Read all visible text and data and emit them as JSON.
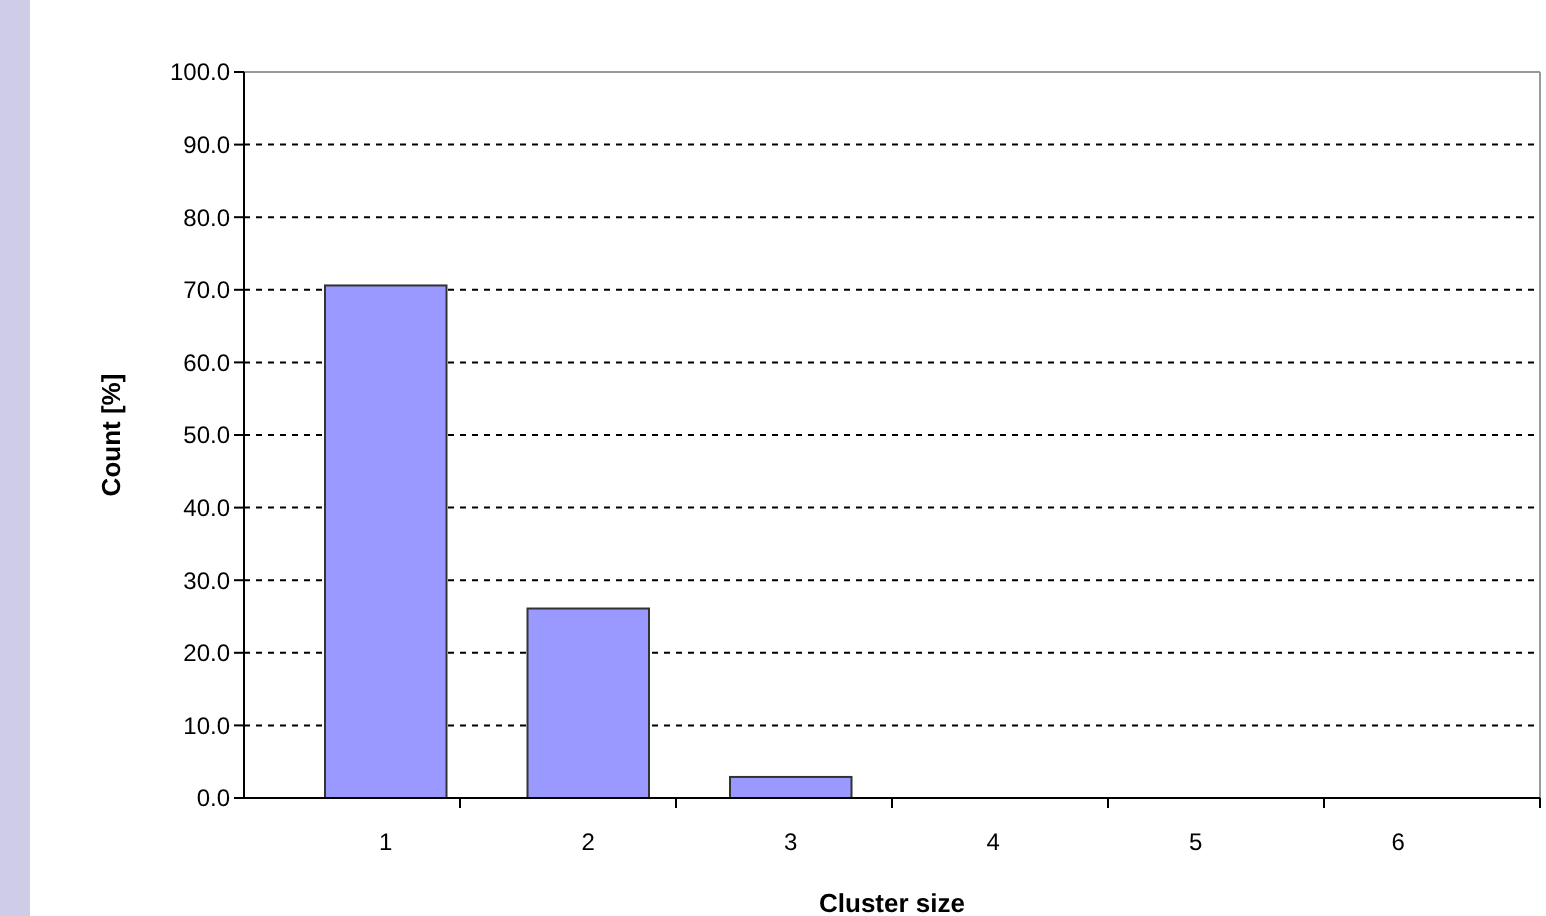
{
  "chart_data": {
    "type": "bar",
    "xlabel": "Cluster size",
    "ylabel": "Count [%]",
    "categories": [
      "1",
      "2",
      "3",
      "4",
      "5",
      "6"
    ],
    "values": [
      70.6,
      26.1,
      2.9,
      0,
      0,
      0
    ],
    "color": "#9999ff",
    "ylim": [
      0,
      100
    ],
    "yticks": [
      {
        "value": 0,
        "label": "0.0"
      },
      {
        "value": 10,
        "label": "10.0"
      },
      {
        "value": 20,
        "label": "20.0"
      },
      {
        "value": 30,
        "label": "30.0"
      },
      {
        "value": 40,
        "label": "40.0"
      },
      {
        "value": 50,
        "label": "50.0"
      },
      {
        "value": 60,
        "label": "60.0"
      },
      {
        "value": 70,
        "label": "70.0"
      },
      {
        "value": 80,
        "label": "80.0"
      },
      {
        "value": 90,
        "label": "90.0"
      },
      {
        "value": 100,
        "label": "100.0"
      }
    ],
    "grid": "y"
  }
}
